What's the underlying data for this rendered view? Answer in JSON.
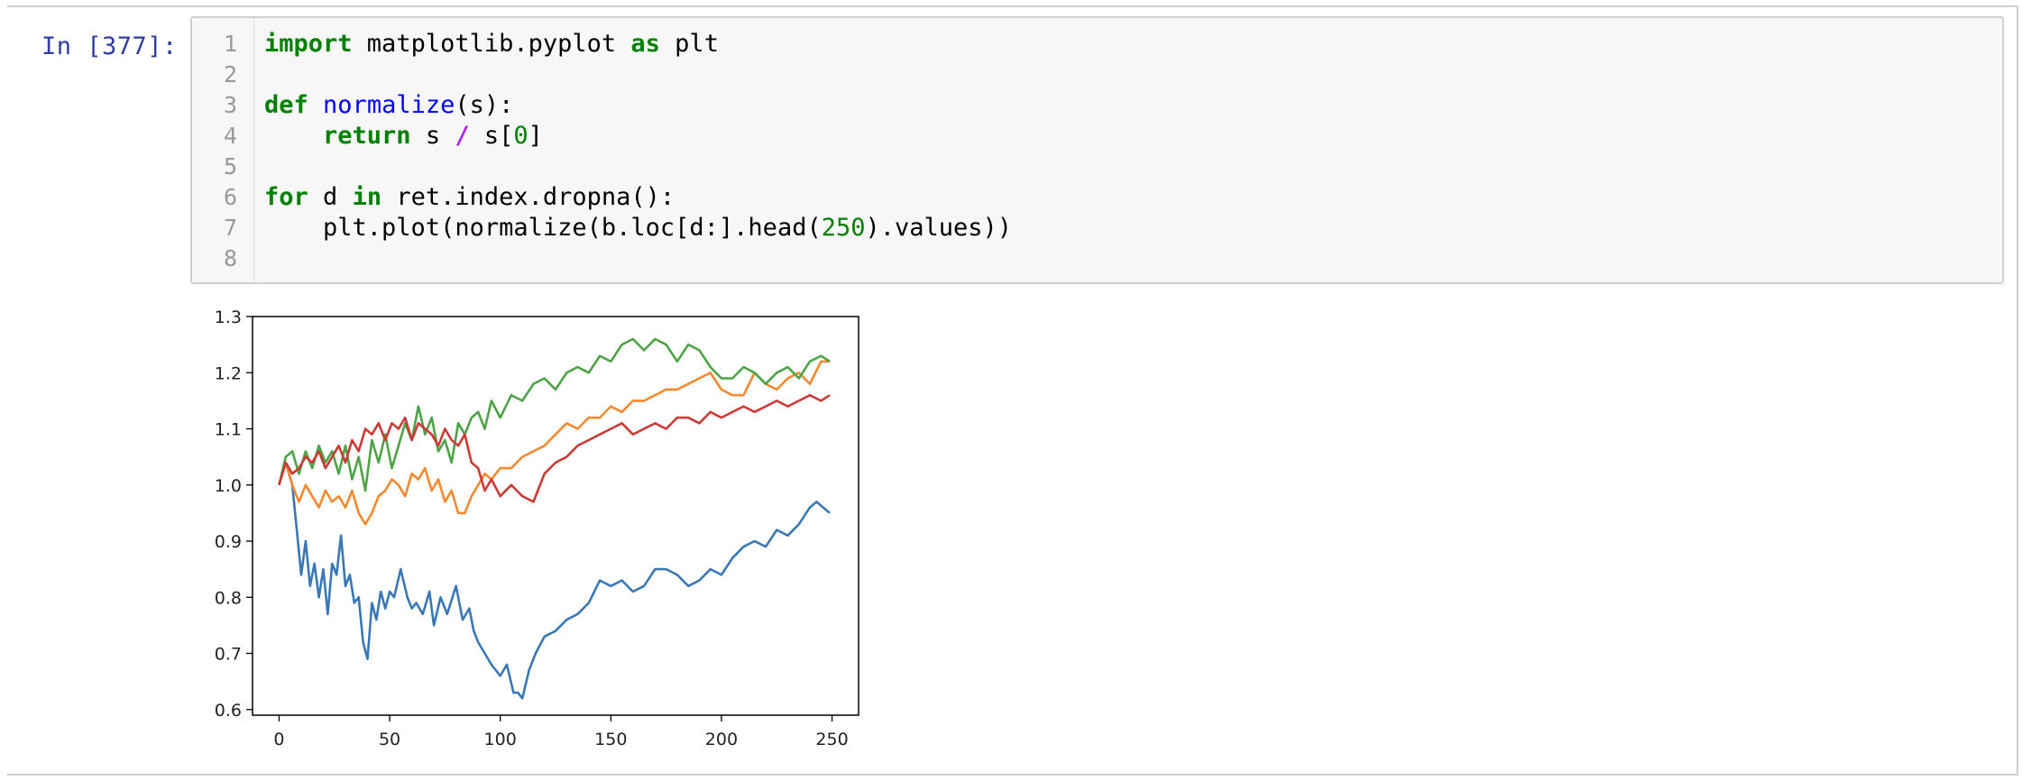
{
  "cell": {
    "prompt": "In [377]:",
    "line_numbers": [
      "1",
      "2",
      "3",
      "4",
      "5",
      "6",
      "7",
      "8"
    ],
    "code_lines": [
      [
        {
          "t": "import",
          "c": "kw"
        },
        {
          "t": " matplotlib.pyplot ",
          "c": ""
        },
        {
          "t": "as",
          "c": "kw"
        },
        {
          "t": " plt",
          "c": ""
        }
      ],
      [],
      [
        {
          "t": "def",
          "c": "kw"
        },
        {
          "t": " ",
          "c": ""
        },
        {
          "t": "normalize",
          "c": "fn"
        },
        {
          "t": "(s):",
          "c": ""
        }
      ],
      [
        {
          "t": "    ",
          "c": ""
        },
        {
          "t": "return",
          "c": "kw"
        },
        {
          "t": " s ",
          "c": ""
        },
        {
          "t": "/",
          "c": "op"
        },
        {
          "t": " s[",
          "c": ""
        },
        {
          "t": "0",
          "c": "num"
        },
        {
          "t": "]",
          "c": ""
        }
      ],
      [],
      [
        {
          "t": "for",
          "c": "kw"
        },
        {
          "t": " d ",
          "c": ""
        },
        {
          "t": "in",
          "c": "kw"
        },
        {
          "t": " ret.index.dropna():",
          "c": ""
        }
      ],
      [
        {
          "t": "    plt.plot(normalize(b.loc[d:].head(",
          "c": ""
        },
        {
          "t": "250",
          "c": "num"
        },
        {
          "t": ").values))",
          "c": ""
        }
      ],
      []
    ]
  },
  "colors": {
    "selection_bar": "#42a5f5",
    "prompt": "#303f9f",
    "series": [
      "#3a78b5",
      "#f4892f",
      "#4da345",
      "#cc3a36"
    ]
  },
  "chart_data": {
    "type": "line",
    "xlim": [
      -12,
      262
    ],
    "ylim": [
      0.59,
      1.3
    ],
    "xticks": [
      0,
      50,
      100,
      150,
      200,
      250
    ],
    "yticks": [
      0.6,
      0.7,
      0.8,
      0.9,
      1.0,
      1.1,
      1.2,
      1.3
    ],
    "ytick_labels": [
      "0.6",
      "0.7",
      "0.8",
      "0.9",
      "1.0",
      "1.1",
      "1.2",
      "1.3"
    ],
    "xtick_labels": [
      "0",
      "50",
      "100",
      "150",
      "200",
      "250"
    ],
    "grid": false,
    "series": [
      {
        "color": "#3a78b5",
        "x": [
          0,
          3,
          6,
          8,
          10,
          12,
          14,
          16,
          18,
          20,
          22,
          24,
          26,
          28,
          30,
          32,
          34,
          36,
          38,
          40,
          42,
          44,
          46,
          48,
          50,
          52,
          55,
          58,
          60,
          62,
          65,
          68,
          70,
          73,
          76,
          80,
          83,
          86,
          88,
          90,
          93,
          96,
          100,
          103,
          106,
          108,
          110,
          113,
          116,
          120,
          125,
          130,
          135,
          140,
          145,
          150,
          155,
          160,
          165,
          170,
          175,
          180,
          185,
          190,
          195,
          200,
          205,
          210,
          215,
          220,
          225,
          230,
          235,
          240,
          243,
          246,
          249
        ],
        "values": [
          1.0,
          1.04,
          1.0,
          0.92,
          0.84,
          0.9,
          0.82,
          0.86,
          0.8,
          0.85,
          0.77,
          0.86,
          0.84,
          0.91,
          0.82,
          0.84,
          0.79,
          0.8,
          0.72,
          0.69,
          0.79,
          0.76,
          0.81,
          0.78,
          0.81,
          0.8,
          0.85,
          0.8,
          0.78,
          0.79,
          0.77,
          0.81,
          0.75,
          0.8,
          0.77,
          0.82,
          0.76,
          0.78,
          0.74,
          0.72,
          0.7,
          0.68,
          0.66,
          0.68,
          0.63,
          0.63,
          0.62,
          0.67,
          0.7,
          0.73,
          0.74,
          0.76,
          0.77,
          0.79,
          0.83,
          0.82,
          0.83,
          0.81,
          0.82,
          0.85,
          0.85,
          0.84,
          0.82,
          0.83,
          0.85,
          0.84,
          0.87,
          0.89,
          0.9,
          0.89,
          0.92,
          0.91,
          0.93,
          0.96,
          0.97,
          0.96,
          0.95
        ]
      },
      {
        "color": "#f4892f",
        "x": [
          0,
          3,
          6,
          9,
          12,
          15,
          18,
          21,
          24,
          27,
          30,
          33,
          36,
          39,
          42,
          45,
          48,
          51,
          54,
          57,
          60,
          63,
          66,
          69,
          72,
          75,
          78,
          81,
          84,
          87,
          90,
          93,
          96,
          100,
          105,
          110,
          115,
          120,
          125,
          130,
          135,
          140,
          145,
          150,
          155,
          160,
          165,
          170,
          175,
          180,
          185,
          190,
          195,
          200,
          205,
          210,
          215,
          220,
          225,
          230,
          235,
          240,
          245,
          249
        ],
        "values": [
          1.0,
          1.04,
          1.0,
          0.97,
          1.0,
          0.98,
          0.96,
          0.99,
          0.97,
          0.98,
          0.96,
          0.99,
          0.95,
          0.93,
          0.95,
          0.98,
          0.99,
          1.01,
          1.0,
          0.98,
          1.02,
          1.01,
          1.03,
          0.99,
          1.01,
          0.97,
          0.99,
          0.95,
          0.95,
          0.98,
          1.0,
          1.02,
          1.01,
          1.03,
          1.03,
          1.05,
          1.06,
          1.07,
          1.09,
          1.11,
          1.1,
          1.12,
          1.12,
          1.14,
          1.13,
          1.15,
          1.15,
          1.16,
          1.17,
          1.17,
          1.18,
          1.19,
          1.2,
          1.17,
          1.16,
          1.16,
          1.2,
          1.18,
          1.17,
          1.19,
          1.2,
          1.18,
          1.22,
          1.22
        ]
      },
      {
        "color": "#4da345",
        "x": [
          0,
          3,
          6,
          9,
          12,
          15,
          18,
          21,
          24,
          27,
          30,
          33,
          36,
          39,
          42,
          45,
          48,
          51,
          54,
          57,
          60,
          63,
          66,
          69,
          72,
          75,
          78,
          81,
          84,
          87,
          90,
          93,
          96,
          100,
          105,
          110,
          115,
          120,
          125,
          130,
          135,
          140,
          145,
          150,
          155,
          160,
          165,
          170,
          175,
          180,
          185,
          190,
          195,
          200,
          205,
          210,
          215,
          220,
          225,
          230,
          235,
          240,
          245,
          249
        ],
        "values": [
          1.0,
          1.05,
          1.06,
          1.02,
          1.06,
          1.03,
          1.07,
          1.04,
          1.06,
          1.02,
          1.07,
          1.01,
          1.05,
          0.99,
          1.08,
          1.04,
          1.09,
          1.03,
          1.07,
          1.11,
          1.08,
          1.14,
          1.09,
          1.12,
          1.06,
          1.08,
          1.04,
          1.11,
          1.09,
          1.12,
          1.13,
          1.1,
          1.15,
          1.12,
          1.16,
          1.15,
          1.18,
          1.19,
          1.17,
          1.2,
          1.21,
          1.2,
          1.23,
          1.22,
          1.25,
          1.26,
          1.24,
          1.26,
          1.25,
          1.22,
          1.25,
          1.24,
          1.21,
          1.19,
          1.19,
          1.21,
          1.2,
          1.18,
          1.2,
          1.21,
          1.19,
          1.22,
          1.23,
          1.22
        ]
      },
      {
        "color": "#cc3a36",
        "x": [
          0,
          3,
          6,
          9,
          12,
          15,
          18,
          21,
          24,
          27,
          30,
          33,
          36,
          39,
          42,
          45,
          48,
          51,
          54,
          57,
          60,
          63,
          66,
          69,
          72,
          75,
          78,
          81,
          84,
          87,
          90,
          93,
          96,
          100,
          105,
          110,
          115,
          120,
          125,
          130,
          135,
          140,
          145,
          150,
          155,
          160,
          165,
          170,
          175,
          180,
          185,
          190,
          195,
          200,
          205,
          210,
          215,
          220,
          225,
          230,
          235,
          240,
          245,
          249
        ],
        "values": [
          1.0,
          1.04,
          1.02,
          1.03,
          1.05,
          1.04,
          1.06,
          1.03,
          1.05,
          1.07,
          1.04,
          1.08,
          1.06,
          1.1,
          1.09,
          1.11,
          1.08,
          1.11,
          1.1,
          1.12,
          1.08,
          1.11,
          1.1,
          1.09,
          1.07,
          1.1,
          1.08,
          1.07,
          1.09,
          1.04,
          1.03,
          0.99,
          1.01,
          0.98,
          1.0,
          0.98,
          0.97,
          1.02,
          1.04,
          1.05,
          1.07,
          1.08,
          1.09,
          1.1,
          1.11,
          1.09,
          1.1,
          1.11,
          1.1,
          1.12,
          1.12,
          1.11,
          1.13,
          1.12,
          1.13,
          1.14,
          1.13,
          1.14,
          1.15,
          1.14,
          1.15,
          1.16,
          1.15,
          1.16
        ]
      }
    ]
  }
}
